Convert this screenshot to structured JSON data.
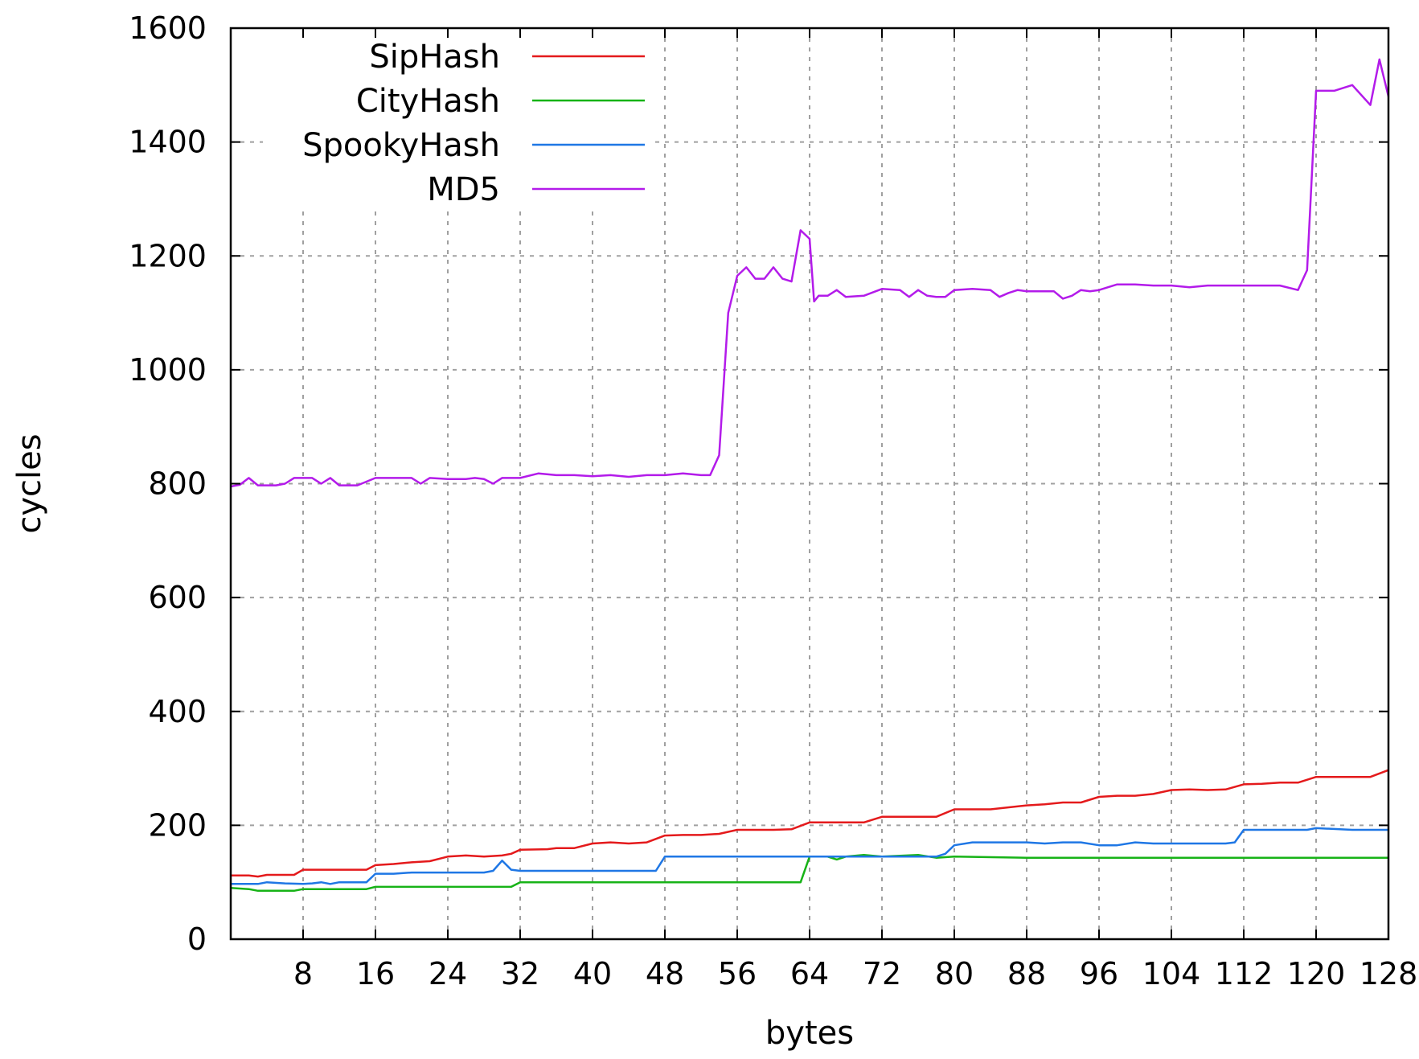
{
  "chart_data": {
    "type": "line",
    "title": "",
    "xlabel": "bytes",
    "ylabel": "cycles",
    "xlim": [
      0,
      128
    ],
    "ylim": [
      0,
      1600
    ],
    "xticks": [
      8,
      16,
      24,
      32,
      40,
      48,
      56,
      64,
      72,
      80,
      88,
      96,
      104,
      112,
      120,
      128
    ],
    "xtick_labels": [
      "8",
      "16",
      "24",
      "32",
      "40",
      "48",
      "56",
      "64",
      "72",
      "80",
      "88",
      "96",
      "104",
      "112",
      "120",
      "128"
    ],
    "yticks": [
      0,
      200,
      400,
      600,
      800,
      1000,
      1200,
      1400,
      1600
    ],
    "ytick_labels": [
      "0",
      "200",
      "400",
      "600",
      "800",
      "1000",
      "1200",
      "1400",
      "1600"
    ],
    "grid": true,
    "legend_position": "top-left",
    "series": [
      {
        "name": "SipHash",
        "color": "#e41a1c",
        "points": [
          [
            0,
            112
          ],
          [
            2,
            112
          ],
          [
            3,
            110
          ],
          [
            4,
            113
          ],
          [
            7,
            113
          ],
          [
            8,
            122
          ],
          [
            15,
            122
          ],
          [
            16,
            130
          ],
          [
            18,
            132
          ],
          [
            20,
            135
          ],
          [
            22,
            137
          ],
          [
            24,
            145
          ],
          [
            26,
            147
          ],
          [
            28,
            145
          ],
          [
            30,
            147
          ],
          [
            31,
            150
          ],
          [
            32,
            157
          ],
          [
            35,
            158
          ],
          [
            36,
            160
          ],
          [
            38,
            160
          ],
          [
            40,
            168
          ],
          [
            42,
            170
          ],
          [
            44,
            168
          ],
          [
            46,
            170
          ],
          [
            48,
            182
          ],
          [
            50,
            183
          ],
          [
            52,
            183
          ],
          [
            54,
            185
          ],
          [
            56,
            192
          ],
          [
            58,
            192
          ],
          [
            60,
            192
          ],
          [
            62,
            193
          ],
          [
            64,
            205
          ],
          [
            67,
            205
          ],
          [
            70,
            205
          ],
          [
            72,
            215
          ],
          [
            75,
            215
          ],
          [
            78,
            215
          ],
          [
            80,
            228
          ],
          [
            84,
            228
          ],
          [
            88,
            235
          ],
          [
            90,
            237
          ],
          [
            92,
            240
          ],
          [
            94,
            240
          ],
          [
            96,
            250
          ],
          [
            98,
            252
          ],
          [
            100,
            252
          ],
          [
            102,
            255
          ],
          [
            104,
            262
          ],
          [
            106,
            263
          ],
          [
            108,
            262
          ],
          [
            110,
            263
          ],
          [
            112,
            272
          ],
          [
            114,
            273
          ],
          [
            116,
            275
          ],
          [
            118,
            275
          ],
          [
            120,
            285
          ],
          [
            124,
            285
          ],
          [
            126,
            285
          ],
          [
            128,
            297
          ]
        ]
      },
      {
        "name": "CityHash",
        "color": "#17b317",
        "points": [
          [
            0,
            90
          ],
          [
            2,
            88
          ],
          [
            3,
            85
          ],
          [
            7,
            85
          ],
          [
            8,
            88
          ],
          [
            15,
            88
          ],
          [
            16,
            92
          ],
          [
            31,
            92
          ],
          [
            32,
            100
          ],
          [
            63,
            100
          ],
          [
            64,
            145
          ],
          [
            66,
            145
          ],
          [
            67,
            140
          ],
          [
            68,
            145
          ],
          [
            70,
            148
          ],
          [
            72,
            145
          ],
          [
            76,
            148
          ],
          [
            78,
            143
          ],
          [
            80,
            145
          ],
          [
            88,
            143
          ],
          [
            96,
            143
          ],
          [
            104,
            143
          ],
          [
            112,
            143
          ],
          [
            120,
            143
          ],
          [
            128,
            143
          ]
        ]
      },
      {
        "name": "SpookyHash",
        "color": "#1f77e5",
        "points": [
          [
            0,
            97
          ],
          [
            3,
            97
          ],
          [
            4,
            100
          ],
          [
            6,
            98
          ],
          [
            8,
            97
          ],
          [
            9,
            98
          ],
          [
            10,
            100
          ],
          [
            11,
            97
          ],
          [
            12,
            100
          ],
          [
            15,
            100
          ],
          [
            16,
            115
          ],
          [
            18,
            115
          ],
          [
            20,
            117
          ],
          [
            22,
            117
          ],
          [
            28,
            117
          ],
          [
            29,
            120
          ],
          [
            30,
            138
          ],
          [
            31,
            122
          ],
          [
            32,
            120
          ],
          [
            34,
            120
          ],
          [
            36,
            120
          ],
          [
            40,
            120
          ],
          [
            44,
            120
          ],
          [
            47,
            120
          ],
          [
            48,
            145
          ],
          [
            56,
            145
          ],
          [
            64,
            145
          ],
          [
            72,
            145
          ],
          [
            78,
            145
          ],
          [
            79,
            150
          ],
          [
            80,
            165
          ],
          [
            82,
            170
          ],
          [
            88,
            170
          ],
          [
            90,
            168
          ],
          [
            92,
            170
          ],
          [
            94,
            170
          ],
          [
            96,
            165
          ],
          [
            98,
            165
          ],
          [
            100,
            170
          ],
          [
            102,
            168
          ],
          [
            104,
            168
          ],
          [
            110,
            168
          ],
          [
            111,
            170
          ],
          [
            112,
            192
          ],
          [
            116,
            192
          ],
          [
            119,
            192
          ],
          [
            120,
            195
          ],
          [
            124,
            192
          ],
          [
            128,
            192
          ]
        ]
      },
      {
        "name": "MD5",
        "color": "#b31bea",
        "points": [
          [
            0,
            795
          ],
          [
            1,
            798
          ],
          [
            2,
            810
          ],
          [
            3,
            797
          ],
          [
            5,
            797
          ],
          [
            6,
            800
          ],
          [
            7,
            810
          ],
          [
            8,
            810
          ],
          [
            9,
            810
          ],
          [
            10,
            800
          ],
          [
            11,
            810
          ],
          [
            12,
            797
          ],
          [
            14,
            797
          ],
          [
            16,
            810
          ],
          [
            18,
            810
          ],
          [
            19,
            810
          ],
          [
            20,
            810
          ],
          [
            21,
            800
          ],
          [
            22,
            810
          ],
          [
            24,
            808
          ],
          [
            26,
            808
          ],
          [
            27,
            810
          ],
          [
            28,
            808
          ],
          [
            29,
            800
          ],
          [
            30,
            810
          ],
          [
            32,
            810
          ],
          [
            34,
            818
          ],
          [
            36,
            815
          ],
          [
            38,
            815
          ],
          [
            40,
            813
          ],
          [
            42,
            815
          ],
          [
            44,
            812
          ],
          [
            46,
            815
          ],
          [
            48,
            815
          ],
          [
            50,
            818
          ],
          [
            52,
            815
          ],
          [
            53,
            815
          ],
          [
            54,
            850
          ],
          [
            55,
            1100
          ],
          [
            56,
            1165
          ],
          [
            57,
            1180
          ],
          [
            58,
            1160
          ],
          [
            59,
            1160
          ],
          [
            60,
            1180
          ],
          [
            61,
            1160
          ],
          [
            62,
            1155
          ],
          [
            63,
            1245
          ],
          [
            64,
            1230
          ],
          [
            64.5,
            1120
          ],
          [
            65,
            1130
          ],
          [
            66,
            1130
          ],
          [
            67,
            1140
          ],
          [
            68,
            1128
          ],
          [
            70,
            1130
          ],
          [
            72,
            1142
          ],
          [
            74,
            1140
          ],
          [
            75,
            1128
          ],
          [
            76,
            1140
          ],
          [
            77,
            1130
          ],
          [
            78,
            1128
          ],
          [
            79,
            1128
          ],
          [
            80,
            1140
          ],
          [
            82,
            1142
          ],
          [
            84,
            1140
          ],
          [
            85,
            1128
          ],
          [
            86,
            1135
          ],
          [
            87,
            1140
          ],
          [
            88,
            1138
          ],
          [
            90,
            1138
          ],
          [
            91,
            1138
          ],
          [
            92,
            1125
          ],
          [
            93,
            1130
          ],
          [
            94,
            1140
          ],
          [
            95,
            1138
          ],
          [
            96,
            1140
          ],
          [
            98,
            1150
          ],
          [
            100,
            1150
          ],
          [
            102,
            1148
          ],
          [
            104,
            1148
          ],
          [
            106,
            1145
          ],
          [
            108,
            1148
          ],
          [
            110,
            1148
          ],
          [
            112,
            1148
          ],
          [
            114,
            1148
          ],
          [
            116,
            1148
          ],
          [
            118,
            1140
          ],
          [
            119,
            1175
          ],
          [
            120,
            1490
          ],
          [
            122,
            1490
          ],
          [
            124,
            1500
          ],
          [
            126,
            1465
          ],
          [
            127,
            1545
          ],
          [
            128,
            1480
          ]
        ]
      }
    ]
  }
}
